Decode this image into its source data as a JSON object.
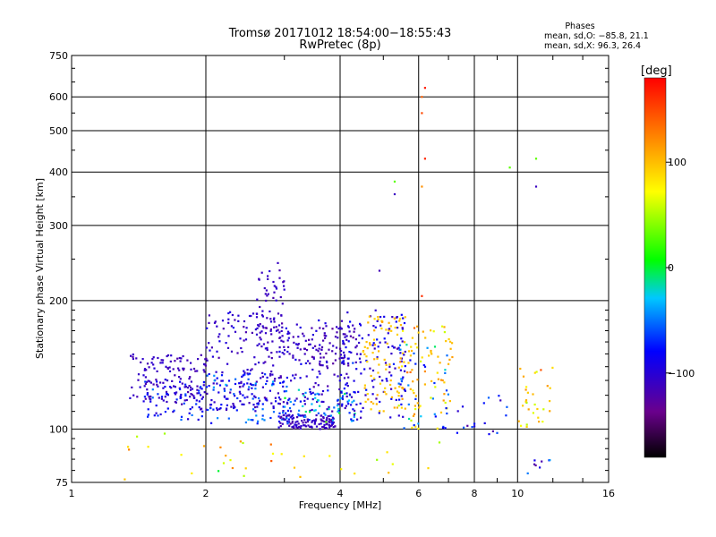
{
  "chart_data": {
    "type": "scatter",
    "title": "Tromsø 20171012 18:54:00−18:55:43",
    "subtitle": "RwPretec (8p)",
    "xlabel": "Frequency [MHz]",
    "ylabel": "Stationary phase Virtual Height [km]",
    "xscale": "log",
    "yscale": "log",
    "xlim": [
      1,
      16
    ],
    "ylim": [
      75,
      750
    ],
    "x_ticks": [
      1,
      2,
      4,
      6,
      8,
      10,
      16
    ],
    "x_tick_labels": [
      "1",
      "2",
      "4",
      "6",
      "8",
      "10",
      "16"
    ],
    "y_ticks": [
      75,
      100,
      200,
      300,
      400,
      500,
      600,
      750
    ],
    "y_tick_labels": [
      "75",
      "100",
      "200",
      "300",
      "400",
      "500",
      "600",
      "750"
    ],
    "grid": true,
    "phase_info": {
      "title": "Phases",
      "line1": "mean, sd,O: −85.8, 21.1",
      "line2": "mean, sd,X:  96.3, 26.4"
    },
    "colorbar": {
      "label": "[deg]",
      "range": [
        -180,
        180
      ],
      "ticks": [
        100,
        0,
        -100
      ],
      "tick_labels": [
        "100",
        "0",
        "−100"
      ]
    },
    "clusters": [
      {
        "xlo": 1.35,
        "xhi": 2.0,
        "ylo": 115,
        "yhi": 150,
        "n": 130,
        "phase": -110,
        "psd": 10
      },
      {
        "xlo": 1.45,
        "xhi": 2.0,
        "ylo": 105,
        "yhi": 130,
        "n": 70,
        "phase": -80,
        "psd": 30
      },
      {
        "xlo": 2.0,
        "xhi": 3.0,
        "ylo": 110,
        "yhi": 190,
        "n": 190,
        "phase": -105,
        "psd": 15
      },
      {
        "xlo": 2.6,
        "xhi": 3.0,
        "ylo": 150,
        "yhi": 240,
        "n": 60,
        "phase": -110,
        "psd": 10
      },
      {
        "xlo": 2.0,
        "xhi": 3.1,
        "ylo": 103,
        "yhi": 135,
        "n": 90,
        "phase": -70,
        "psd": 30
      },
      {
        "xlo": 2.9,
        "xhi": 3.9,
        "ylo": 100,
        "yhi": 108,
        "n": 120,
        "phase": -110,
        "psd": 12
      },
      {
        "xlo": 3.0,
        "xhi": 4.2,
        "ylo": 110,
        "yhi": 180,
        "n": 120,
        "phase": -105,
        "psd": 15
      },
      {
        "xlo": 3.4,
        "xhi": 4.4,
        "ylo": 140,
        "yhi": 175,
        "n": 60,
        "phase": -115,
        "psd": 10
      },
      {
        "xlo": 3.0,
        "xhi": 4.5,
        "ylo": 103,
        "yhi": 125,
        "n": 70,
        "phase": -40,
        "psd": 45
      },
      {
        "xlo": 4.0,
        "xhi": 5.6,
        "ylo": 105,
        "yhi": 190,
        "n": 130,
        "phase": -95,
        "psd": 25
      },
      {
        "xlo": 4.5,
        "xhi": 5.6,
        "ylo": 110,
        "yhi": 185,
        "n": 80,
        "phase": 100,
        "psd": 15
      },
      {
        "xlo": 5.4,
        "xhi": 7.2,
        "ylo": 100,
        "yhi": 175,
        "n": 80,
        "phase": 95,
        "psd": 30
      },
      {
        "xlo": 5.4,
        "xhi": 7.0,
        "ylo": 100,
        "yhi": 160,
        "n": 40,
        "phase": -60,
        "psd": 40
      },
      {
        "xlo": 1.3,
        "xhi": 7.0,
        "ylo": 76,
        "yhi": 98,
        "n": 35,
        "phase": 80,
        "psd": 60
      },
      {
        "xlo": 7.2,
        "xhi": 9.5,
        "ylo": 96,
        "yhi": 120,
        "n": 18,
        "phase": -90,
        "psd": 40
      },
      {
        "xlo": 10.0,
        "xhi": 12.0,
        "ylo": 100,
        "yhi": 140,
        "n": 30,
        "phase": 100,
        "psd": 40
      },
      {
        "xlo": 10.5,
        "xhi": 12.0,
        "ylo": 76,
        "yhi": 90,
        "n": 8,
        "phase": -80,
        "psd": 40
      }
    ],
    "points": [
      {
        "x": 6.2,
        "y": 630,
        "phase": 170
      },
      {
        "x": 6.1,
        "y": 600,
        "phase": 140
      },
      {
        "x": 6.1,
        "y": 550,
        "phase": 150
      },
      {
        "x": 6.2,
        "y": 430,
        "phase": 165
      },
      {
        "x": 6.1,
        "y": 370,
        "phase": 120
      },
      {
        "x": 5.3,
        "y": 380,
        "phase": 30
      },
      {
        "x": 5.3,
        "y": 355,
        "phase": -110
      },
      {
        "x": 9.6,
        "y": 410,
        "phase": 30
      },
      {
        "x": 11.0,
        "y": 430,
        "phase": 30
      },
      {
        "x": 11.0,
        "y": 370,
        "phase": -110
      },
      {
        "x": 2.9,
        "y": 245,
        "phase": -110
      },
      {
        "x": 4.9,
        "y": 235,
        "phase": -115
      },
      {
        "x": 6.1,
        "y": 205,
        "phase": 160
      }
    ]
  }
}
